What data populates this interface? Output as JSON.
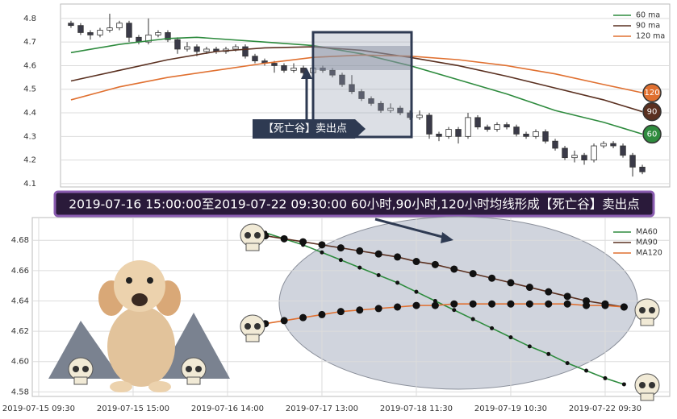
{
  "banner": "2019-07-16 15:00:00至2019-07-22 09:30:00 60小时,90小时,120小时均线形成【死亡谷】卖出点",
  "chart_data": [
    {
      "type": "candlestick",
      "open": [
        4.78,
        4.77,
        4.74,
        4.73,
        4.75,
        4.76,
        4.78,
        4.72,
        4.7,
        4.73,
        4.74,
        4.71,
        4.67,
        4.68,
        4.66,
        4.67,
        4.66,
        4.67,
        4.68,
        4.64,
        4.62,
        4.61,
        4.6,
        4.58,
        4.59,
        4.57,
        4.59,
        4.58,
        4.56,
        4.52,
        4.49,
        4.46,
        4.44,
        4.41,
        4.42,
        4.4,
        4.38,
        4.39,
        4.31,
        4.3,
        4.33,
        4.3,
        4.38,
        4.34,
        4.33,
        4.35,
        4.34,
        4.31,
        4.3,
        4.32,
        4.28,
        4.25,
        4.21,
        4.22,
        4.2,
        4.26,
        4.27,
        4.26,
        4.22,
        4.17
      ],
      "high": [
        4.79,
        4.78,
        4.75,
        4.76,
        4.82,
        4.79,
        4.79,
        4.73,
        4.8,
        4.75,
        4.75,
        4.72,
        4.7,
        4.69,
        4.68,
        4.68,
        4.68,
        4.69,
        4.69,
        4.65,
        4.63,
        4.62,
        4.61,
        4.61,
        4.6,
        4.6,
        4.6,
        4.59,
        4.57,
        4.56,
        4.5,
        4.47,
        4.45,
        4.44,
        4.43,
        4.41,
        4.41,
        4.4,
        4.32,
        4.34,
        4.34,
        4.4,
        4.39,
        4.35,
        4.36,
        4.36,
        4.35,
        4.32,
        4.33,
        4.33,
        4.29,
        4.26,
        4.24,
        4.23,
        4.27,
        4.28,
        4.28,
        4.27,
        4.23,
        4.18
      ],
      "low": [
        4.76,
        4.73,
        4.71,
        4.72,
        4.74,
        4.75,
        4.7,
        4.69,
        4.69,
        4.72,
        4.7,
        4.65,
        4.66,
        4.64,
        4.65,
        4.65,
        4.65,
        4.66,
        4.63,
        4.61,
        4.6,
        4.57,
        4.57,
        4.57,
        4.56,
        4.56,
        4.57,
        4.55,
        4.51,
        4.48,
        4.45,
        4.43,
        4.4,
        4.4,
        4.39,
        4.37,
        4.37,
        4.29,
        4.28,
        4.29,
        4.27,
        4.29,
        4.33,
        4.32,
        4.32,
        4.33,
        4.3,
        4.29,
        4.29,
        4.27,
        4.24,
        4.2,
        4.19,
        4.18,
        4.19,
        4.25,
        4.25,
        4.21,
        4.13,
        4.14
      ],
      "close": [
        4.77,
        4.74,
        4.73,
        4.75,
        4.76,
        4.78,
        4.72,
        4.7,
        4.73,
        4.74,
        4.71,
        4.67,
        4.68,
        4.66,
        4.67,
        4.66,
        4.67,
        4.68,
        4.64,
        4.62,
        4.61,
        4.6,
        4.58,
        4.59,
        4.57,
        4.59,
        4.58,
        4.56,
        4.52,
        4.49,
        4.46,
        4.44,
        4.41,
        4.42,
        4.4,
        4.38,
        4.39,
        4.31,
        4.3,
        4.33,
        4.3,
        4.38,
        4.34,
        4.33,
        4.35,
        4.34,
        4.31,
        4.3,
        4.32,
        4.28,
        4.25,
        4.21,
        4.22,
        4.2,
        4.26,
        4.27,
        4.26,
        4.22,
        4.17,
        4.15
      ],
      "colors": {
        "up": "#ffffff",
        "down": "#3a3a48"
      },
      "series": [
        {
          "name": "60 ma",
          "color": "#2e8b3e",
          "end_label": "60",
          "x": [
            0,
            5,
            10,
            13,
            20,
            25,
            30,
            35,
            40,
            45,
            50,
            55,
            59
          ],
          "values": [
            4.655,
            4.69,
            4.715,
            4.72,
            4.7,
            4.685,
            4.65,
            4.6,
            4.54,
            4.48,
            4.41,
            4.36,
            4.31
          ]
        },
        {
          "name": "90 ma",
          "color": "#5a3020",
          "end_label": "90",
          "x": [
            0,
            5,
            10,
            15,
            20,
            25,
            30,
            35,
            40,
            45,
            50,
            55,
            59
          ],
          "values": [
            4.535,
            4.58,
            4.625,
            4.66,
            4.675,
            4.68,
            4.665,
            4.635,
            4.6,
            4.555,
            4.505,
            4.455,
            4.405
          ]
        },
        {
          "name": "120 ma",
          "color": "#e07030",
          "end_label": "120",
          "x": [
            0,
            5,
            10,
            15,
            20,
            25,
            30,
            35,
            40,
            45,
            50,
            55,
            59
          ],
          "values": [
            4.455,
            4.51,
            4.55,
            4.58,
            4.61,
            4.635,
            4.645,
            4.64,
            4.625,
            4.6,
            4.565,
            4.52,
            4.485
          ]
        }
      ],
      "xlim": [
        -1.08,
        61.83
      ],
      "ylim": [
        4.086,
        4.861
      ],
      "yticks": [
        4.1,
        4.2,
        4.3,
        4.4,
        4.5,
        4.6,
        4.7,
        4.8
      ],
      "grid": true,
      "legend": "upper right",
      "annotation": "【死亡谷】卖出点"
    },
    {
      "type": "line",
      "x": [
        12,
        13,
        14,
        15,
        16,
        17,
        18,
        19,
        20,
        21,
        22,
        23,
        24,
        25,
        26,
        27,
        28,
        29,
        30,
        31
      ],
      "series": [
        {
          "name": "MA60",
          "color": "#2e8b3e",
          "marker_size": 2.5,
          "values": [
            4.685,
            4.681,
            4.677,
            4.672,
            4.667,
            4.662,
            4.657,
            4.652,
            4.646,
            4.64,
            4.634,
            4.628,
            4.622,
            4.616,
            4.61,
            4.605,
            4.599,
            4.594,
            4.589,
            4.585
          ]
        },
        {
          "name": "MA90",
          "color": "#5a3020",
          "marker_size": 4.5,
          "values": [
            4.683,
            4.681,
            4.679,
            4.677,
            4.675,
            4.673,
            4.671,
            4.669,
            4.666,
            4.664,
            4.661,
            4.658,
            4.655,
            4.652,
            4.649,
            4.646,
            4.643,
            4.64,
            4.638,
            4.636
          ]
        },
        {
          "name": "MA120",
          "color": "#e07030",
          "marker_size": 4.5,
          "values": [
            4.625,
            4.627,
            4.629,
            4.631,
            4.633,
            4.634,
            4.635,
            4.636,
            4.637,
            4.637,
            4.638,
            4.638,
            4.638,
            4.638,
            4.638,
            4.638,
            4.638,
            4.637,
            4.637,
            4.636
          ]
        }
      ],
      "xlim": [
        -0.34,
        33.42
      ],
      "xticks": [
        {
          "value": 0,
          "label": "2019-07-15 09:30"
        },
        {
          "value": 5,
          "label": "2019-07-15 15:00"
        },
        {
          "value": 10,
          "label": "2019-07-16 14:00"
        },
        {
          "value": 15,
          "label": "2019-07-17 13:00"
        },
        {
          "value": 20,
          "label": "2019-07-18 11:30"
        },
        {
          "value": 25,
          "label": "2019-07-19 10:30"
        },
        {
          "value": 30,
          "label": "2019-07-22 09:30"
        }
      ],
      "ylim": [
        4.577,
        4.695
      ],
      "yticks": [
        4.58,
        {
          "value": 4.6,
          "label": "4.60"
        },
        4.62,
        4.64,
        4.66,
        4.68
      ],
      "grid": true,
      "legend": "upper right"
    }
  ]
}
